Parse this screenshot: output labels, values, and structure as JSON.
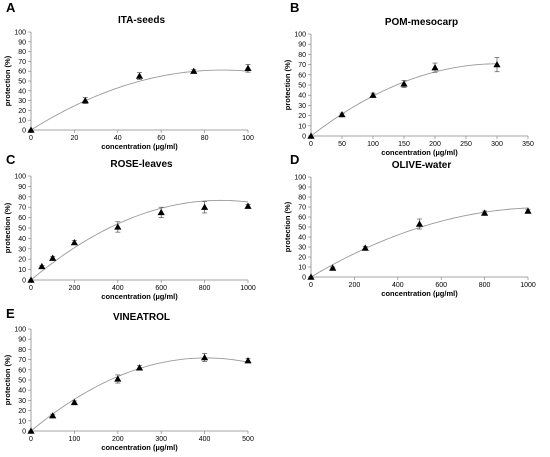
{
  "chart_data": [
    {
      "type": "scatter",
      "panel": "A",
      "title": "ITA-seeds",
      "xlabel": "concentration (µg/ml)",
      "ylabel": "protection (%)",
      "xlim": [
        0,
        100
      ],
      "xticks": [
        0,
        20,
        40,
        60,
        80,
        100
      ],
      "ylim": [
        0,
        100
      ],
      "yticks": [
        0,
        10,
        20,
        30,
        40,
        50,
        60,
        70,
        80,
        90,
        100
      ],
      "grid": false,
      "trendline": "polynomial",
      "points": [
        {
          "x": 0,
          "y": 0,
          "err": 0
        },
        {
          "x": 25,
          "y": 30,
          "err": 3
        },
        {
          "x": 50,
          "y": 55,
          "err": 3.5
        },
        {
          "x": 75,
          "y": 60,
          "err": 1.5
        },
        {
          "x": 100,
          "y": 63,
          "err": 4
        }
      ],
      "curve": {
        "a": -0.0079,
        "b": 1.39,
        "c": 0
      }
    },
    {
      "type": "scatter",
      "panel": "B",
      "title": "POM-mesocarp",
      "xlabel": "concentration (µg/ml)",
      "ylabel": "protection (%)",
      "xlim": [
        0,
        350
      ],
      "xticks": [
        0,
        50,
        100,
        150,
        200,
        250,
        300,
        350
      ],
      "ylim": [
        0,
        100
      ],
      "yticks": [
        0,
        10,
        20,
        30,
        40,
        50,
        60,
        70,
        80,
        90,
        100
      ],
      "grid": false,
      "trendline": "polynomial",
      "points": [
        {
          "x": 0,
          "y": 0,
          "err": 0
        },
        {
          "x": 50,
          "y": 21,
          "err": 1.5
        },
        {
          "x": 100,
          "y": 40,
          "err": 2
        },
        {
          "x": 150,
          "y": 51,
          "err": 3.5
        },
        {
          "x": 200,
          "y": 67,
          "err": 4.5
        },
        {
          "x": 300,
          "y": 70,
          "err": 7
        }
      ],
      "curve": {
        "a": -0.00078,
        "b": 0.47,
        "c": 0
      }
    },
    {
      "type": "scatter",
      "panel": "C",
      "title": "ROSE-leaves",
      "xlabel": "concentration (µg/ml)",
      "ylabel": "protection (%)",
      "xlim": [
        0,
        1000
      ],
      "xticks": [
        0,
        200,
        400,
        600,
        800,
        1000
      ],
      "ylim": [
        0,
        100
      ],
      "yticks": [
        0,
        10,
        20,
        30,
        40,
        50,
        60,
        70,
        80,
        90,
        100
      ],
      "grid": false,
      "trendline": "polynomial",
      "points": [
        {
          "x": 0,
          "y": 0,
          "err": 0
        },
        {
          "x": 50,
          "y": 13,
          "err": 1
        },
        {
          "x": 100,
          "y": 21,
          "err": 1.5
        },
        {
          "x": 200,
          "y": 36,
          "err": 2
        },
        {
          "x": 400,
          "y": 51,
          "err": 5
        },
        {
          "x": 600,
          "y": 65,
          "err": 5
        },
        {
          "x": 800,
          "y": 70,
          "err": 5.5
        },
        {
          "x": 1000,
          "y": 71,
          "err": 1.5
        }
      ],
      "curve": {
        "a": -0.0001,
        "b": 0.175,
        "c": 0
      }
    },
    {
      "type": "scatter",
      "panel": "D",
      "title": "OLIVE-water",
      "xlabel": "concentration (µg/ml)",
      "ylabel": "protection (%)",
      "xlim": [
        0,
        1000
      ],
      "xticks": [
        0,
        200,
        400,
        600,
        800,
        1000
      ],
      "ylim": [
        0,
        100
      ],
      "yticks": [
        0,
        10,
        20,
        30,
        40,
        50,
        60,
        70,
        80,
        90,
        100
      ],
      "grid": false,
      "trendline": "polynomial",
      "points": [
        {
          "x": 0,
          "y": 0,
          "err": 0
        },
        {
          "x": 100,
          "y": 9,
          "err": 1
        },
        {
          "x": 250,
          "y": 29,
          "err": 1.5
        },
        {
          "x": 500,
          "y": 53,
          "err": 5
        },
        {
          "x": 800,
          "y": 64,
          "err": 2
        },
        {
          "x": 1000,
          "y": 66,
          "err": 1.5
        }
      ],
      "curve": {
        "a": -6e-05,
        "b": 0.129,
        "c": 0
      }
    },
    {
      "type": "scatter",
      "panel": "E",
      "title": "VINEATROL",
      "xlabel": "concentration (µg/ml)",
      "ylabel": "protection (%)",
      "xlim": [
        0,
        500
      ],
      "xticks": [
        0,
        100,
        200,
        300,
        400,
        500
      ],
      "ylim": [
        0,
        100
      ],
      "yticks": [
        0,
        10,
        20,
        30,
        40,
        50,
        60,
        70,
        80,
        90,
        100
      ],
      "grid": false,
      "trendline": "polynomial",
      "points": [
        {
          "x": 0,
          "y": 0,
          "err": 0
        },
        {
          "x": 50,
          "y": 15,
          "err": 1.5
        },
        {
          "x": 100,
          "y": 28,
          "err": 1.5
        },
        {
          "x": 200,
          "y": 51,
          "err": 4
        },
        {
          "x": 250,
          "y": 62,
          "err": 2
        },
        {
          "x": 400,
          "y": 72,
          "err": 4
        },
        {
          "x": 500,
          "y": 69,
          "err": 2
        }
      ],
      "curve": {
        "a": -0.00044,
        "b": 0.355,
        "c": 0
      }
    }
  ]
}
